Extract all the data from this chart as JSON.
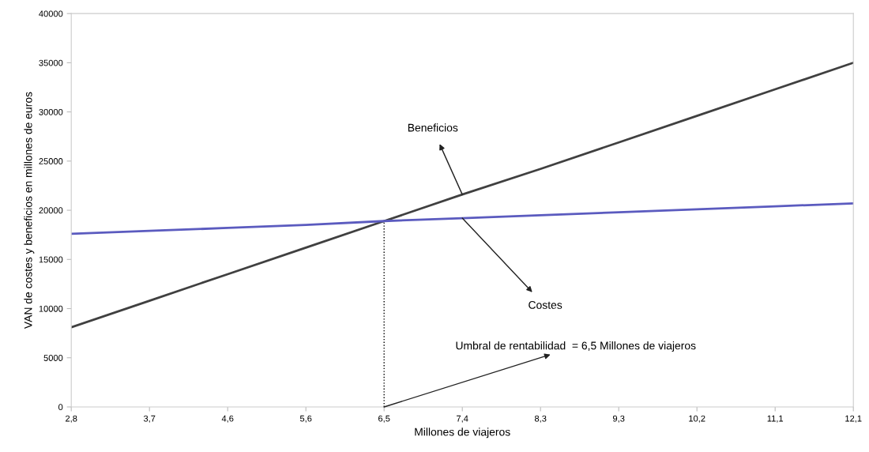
{
  "chart_data": {
    "type": "line",
    "xlabel": "Millones de viajeros",
    "ylabel": "VAN de costes y beneficios en millones de euros",
    "categories": [
      "2,8",
      "3,7",
      "4,6",
      "5,6",
      "6,5",
      "7,4",
      "8,3",
      "9,3",
      "10,2",
      "11,1",
      "12,1"
    ],
    "ylim": [
      0,
      40000
    ],
    "yticks": [
      0,
      5000,
      10000,
      15000,
      20000,
      25000,
      30000,
      35000,
      40000
    ],
    "grid": false,
    "marker": "none",
    "series": [
      {
        "color": "#404040",
        "values": [
          8100,
          10800,
          13500,
          16200,
          18900,
          21600,
          24200,
          26900,
          29600,
          32300,
          35000
        ]
      },
      {
        "color": "#5b5bbf",
        "values": [
          17600,
          17900,
          18200,
          18500,
          18900,
          19200,
          19500,
          19800,
          20100,
          20400,
          20700
        ]
      },
      {
        "color": "#000000",
        "line_style": "dotted",
        "x": [
          "6,5",
          "6,5"
        ],
        "values": [
          0,
          18900
        ]
      }
    ],
    "annotations": [
      {
        "text": "Beneficios",
        "x": "7,4",
        "y": 21600
      },
      {
        "text": "Costes",
        "x": "7,4",
        "y": 19200
      },
      {
        "text": "Umbral de rentabilidad  = 6,5 Millones de viajeros",
        "x": "6,5",
        "y": 0
      }
    ]
  }
}
